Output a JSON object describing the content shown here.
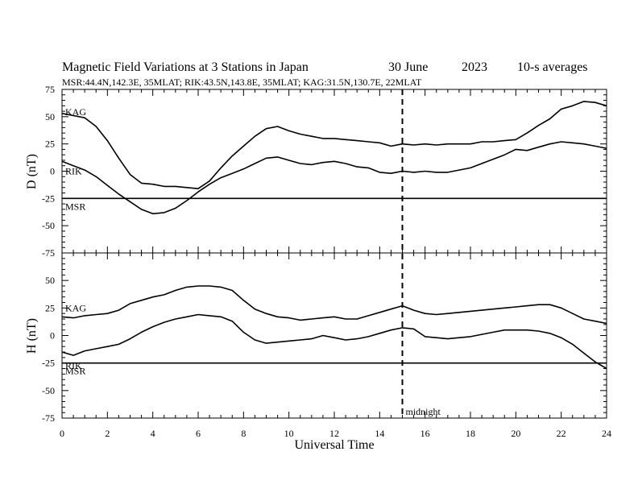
{
  "header": {
    "title": "Magnetic Field Variations at 3 Stations in Japan",
    "date": "30 June",
    "year": "2023",
    "averaging": "10-s averages",
    "subtitle": "MSR:44.4N,142.3E, 35MLAT;  RIK:43.5N,143.8E, 35MLAT;  KAG:31.5N,130.7E, 22MLAT"
  },
  "colors": {
    "line": "#000000",
    "background": "#ffffff"
  },
  "chart_data": [
    {
      "type": "line",
      "panel": "top",
      "ylabel": "D (nT)",
      "ylim": [
        -75,
        75
      ],
      "yticks": [
        "75",
        "50",
        "25",
        "0",
        "-25",
        "-50",
        "-75"
      ],
      "xlim": [
        0,
        24
      ],
      "grid": false,
      "series": [
        {
          "name": "KAG",
          "x": [
            0,
            0.5,
            1,
            1.5,
            2,
            2.5,
            3,
            3.5,
            4,
            4.5,
            5,
            5.5,
            6,
            6.5,
            7,
            7.5,
            8,
            8.5,
            9,
            9.5,
            10,
            10.5,
            11,
            11.5,
            12,
            12.5,
            13,
            13.5,
            14,
            14.5,
            15,
            15.5,
            16,
            16.5,
            17,
            17.5,
            18,
            18.5,
            19,
            19.5,
            20,
            20.5,
            21,
            21.5,
            22,
            22.5,
            23,
            23.5,
            24
          ],
          "y": [
            53,
            51,
            49,
            41,
            28,
            12,
            -3,
            -11,
            -12,
            -14,
            -14,
            -15,
            -16,
            -9,
            3,
            14,
            23,
            32,
            39,
            41,
            37,
            34,
            32,
            30,
            30,
            29,
            28,
            27,
            26,
            23,
            25,
            24,
            25,
            24,
            25,
            25,
            25,
            27,
            27,
            28,
            29,
            35,
            42,
            48,
            57,
            60,
            64,
            63,
            60
          ]
        },
        {
          "name": "RIK",
          "x": [
            0,
            0.5,
            1,
            1.5,
            2,
            2.5,
            3,
            3.5,
            4,
            4.5,
            5,
            5.5,
            6,
            6.5,
            7,
            7.5,
            8,
            8.5,
            9,
            9.5,
            10,
            10.5,
            11,
            11.5,
            12,
            12.5,
            13,
            13.5,
            14,
            14.5,
            15,
            15.5,
            16,
            16.5,
            17,
            17.5,
            18,
            18.5,
            19,
            19.5,
            20,
            20.5,
            21,
            21.5,
            22,
            22.5,
            23,
            23.5,
            24
          ],
          "y": [
            9,
            5,
            1,
            -5,
            -13,
            -21,
            -28,
            -35,
            -39,
            -38,
            -34,
            -27,
            -19,
            -12,
            -6,
            -2,
            2,
            7,
            12,
            13,
            10,
            7,
            6,
            8,
            9,
            7,
            4,
            3,
            -1,
            -2,
            0,
            -1,
            0,
            -1,
            -1,
            1,
            3,
            7,
            11,
            15,
            20,
            19,
            22,
            25,
            27,
            26,
            25,
            23,
            21
          ]
        },
        {
          "name": "MSR",
          "x": [
            0,
            24
          ],
          "y": [
            -25,
            -25
          ]
        }
      ]
    },
    {
      "type": "line",
      "panel": "bottom",
      "ylabel": "H (nT)",
      "xlabel": "Universal Time",
      "ylim": [
        -75,
        75
      ],
      "yticks": [
        "50",
        "25",
        "0",
        "-25",
        "-50",
        "-75"
      ],
      "xlim": [
        0,
        24
      ],
      "xticks": [
        "0",
        "2",
        "4",
        "6",
        "8",
        "10",
        "12",
        "14",
        "16",
        "18",
        "20",
        "22",
        "24"
      ],
      "grid": false,
      "series": [
        {
          "name": "KAG",
          "x": [
            0,
            0.5,
            1,
            1.5,
            2,
            2.5,
            3,
            3.5,
            4,
            4.5,
            5,
            5.5,
            6,
            6.5,
            7,
            7.5,
            8,
            8.5,
            9,
            9.5,
            10,
            10.5,
            11,
            11.5,
            12,
            12.5,
            13,
            13.5,
            14,
            14.5,
            15,
            15.5,
            16,
            16.5,
            17,
            17.5,
            18,
            18.5,
            19,
            19.5,
            20,
            20.5,
            21,
            21.5,
            22,
            22.5,
            23,
            23.5,
            24
          ],
          "y": [
            17,
            16,
            18,
            19,
            20,
            23,
            29,
            32,
            35,
            37,
            41,
            44,
            45,
            45,
            44,
            41,
            32,
            24,
            20,
            17,
            16,
            14,
            15,
            16,
            17,
            15,
            15,
            18,
            21,
            24,
            27,
            23,
            20,
            19,
            20,
            21,
            22,
            23,
            24,
            25,
            26,
            27,
            28,
            28,
            25,
            20,
            15,
            13,
            11
          ]
        },
        {
          "name": "RIK",
          "x": [
            0,
            0.5,
            1,
            1.5,
            2,
            2.5,
            3,
            3.5,
            4,
            4.5,
            5,
            5.5,
            6,
            6.5,
            7,
            7.5,
            8,
            8.5,
            9,
            9.5,
            10,
            10.5,
            11,
            11.5,
            12,
            12.5,
            13,
            13.5,
            14,
            14.5,
            15,
            15.5,
            16,
            16.5,
            17,
            17.5,
            18,
            18.5,
            19,
            19.5,
            20,
            20.5,
            21,
            21.5,
            22,
            22.5,
            23,
            23.5,
            24
          ],
          "y": [
            -15,
            -18,
            -14,
            -12,
            -10,
            -8,
            -3,
            3,
            8,
            12,
            15,
            17,
            19,
            18,
            17,
            13,
            3,
            -4,
            -7,
            -6,
            -5,
            -4,
            -3,
            0,
            -2,
            -4,
            -3,
            -1,
            2,
            5,
            7,
            6,
            -1,
            -2,
            -3,
            -2,
            -1,
            1,
            3,
            5,
            5,
            5,
            4,
            2,
            -2,
            -8,
            -16,
            -24,
            -30
          ]
        },
        {
          "name": "MSR",
          "x": [
            0,
            24
          ],
          "y": [
            -25,
            -25
          ]
        }
      ]
    }
  ],
  "annotations": {
    "marker_label": "midnight",
    "marker_x": 15
  }
}
